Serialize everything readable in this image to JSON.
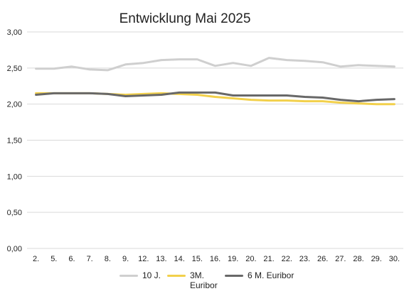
{
  "chart_data": {
    "type": "line",
    "title": "Entwicklung Mai 2025",
    "categories": [
      "2.",
      "5.",
      "6.",
      "7.",
      "8.",
      "9.",
      "12.",
      "13.",
      "14.",
      "15.",
      "16.",
      "19.",
      "20.",
      "21.",
      "22.",
      "23.",
      "26.",
      "27.",
      "28.",
      "29.",
      "30."
    ],
    "series": [
      {
        "name": "10 J.",
        "color": "#cfcfcf",
        "values": [
          2.49,
          2.49,
          2.52,
          2.48,
          2.47,
          2.55,
          2.57,
          2.61,
          2.62,
          2.62,
          2.53,
          2.57,
          2.53,
          2.64,
          2.61,
          2.6,
          2.58,
          2.52,
          2.54,
          2.53,
          2.52
        ]
      },
      {
        "name": "3M. Euribor",
        "color": "#f2d04b",
        "values": [
          2.15,
          2.15,
          2.15,
          2.15,
          2.14,
          2.13,
          2.14,
          2.15,
          2.14,
          2.13,
          2.1,
          2.08,
          2.06,
          2.05,
          2.05,
          2.04,
          2.04,
          2.02,
          2.01,
          2.0,
          2.0
        ]
      },
      {
        "name": "6 M. Euribor",
        "color": "#686868",
        "values": [
          2.13,
          2.15,
          2.15,
          2.15,
          2.14,
          2.11,
          2.12,
          2.13,
          2.16,
          2.16,
          2.16,
          2.12,
          2.12,
          2.12,
          2.12,
          2.1,
          2.09,
          2.06,
          2.04,
          2.06,
          2.07
        ]
      }
    ],
    "y_ticks": [
      "0,00",
      "0,50",
      "1,00",
      "1,50",
      "2,00",
      "2,50",
      "3,00"
    ],
    "ylim": [
      0,
      3
    ],
    "grid": true,
    "legend_position": "bottom"
  }
}
